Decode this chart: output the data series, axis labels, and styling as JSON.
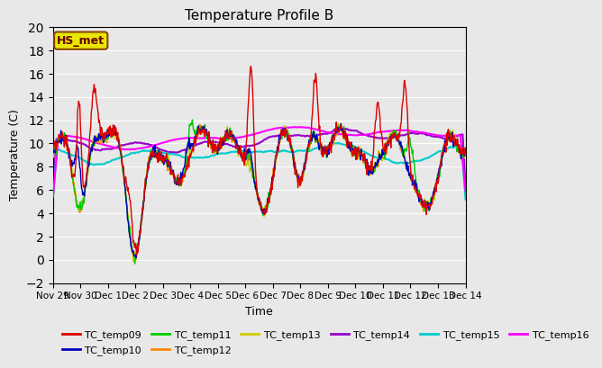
{
  "title": "Temperature Profile B",
  "xlabel": "Time",
  "ylabel": "Temperature (C)",
  "ylim": [
    -2,
    20
  ],
  "fig_facecolor": "#e8e8e8",
  "plot_facecolor": "#e8e8e8",
  "annotation_text": "HS_met",
  "series_colors": {
    "TC_temp09": "#dd0000",
    "TC_temp10": "#0000bb",
    "TC_temp11": "#00cc00",
    "TC_temp12": "#ff8800",
    "TC_temp13": "#cccc00",
    "TC_temp14": "#9900cc",
    "TC_temp15": "#00cccc",
    "TC_temp16": "#ff00ff"
  },
  "xtick_labels": [
    "Nov 29",
    "Nov 30",
    "Dec 1",
    "Dec 2",
    "Dec 3",
    "Dec 4",
    "Dec 5",
    "Dec 6",
    "Dec 7",
    "Dec 8",
    "Dec 9",
    "Dec 10",
    "Dec 11",
    "Dec 12",
    "Dec 13",
    "Dec 14"
  ],
  "grid_color": "#ffffff",
  "legend_labels": [
    "TC_temp09",
    "TC_temp10",
    "TC_temp11",
    "TC_temp12",
    "TC_temp13",
    "TC_temp14",
    "TC_temp15",
    "TC_temp16"
  ],
  "legend_colors": [
    "#dd0000",
    "#0000bb",
    "#00cc00",
    "#ff8800",
    "#cccc00",
    "#9900cc",
    "#00cccc",
    "#ff00ff"
  ]
}
